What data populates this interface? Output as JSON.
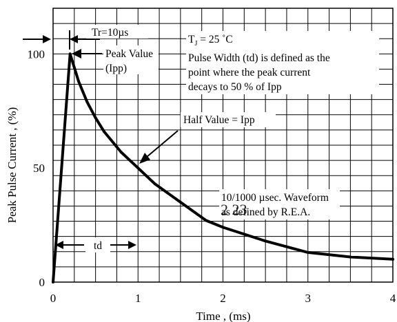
{
  "chart_data": {
    "type": "line",
    "title": "",
    "xlabel": "Time , (ms)",
    "ylabel": "Peak Pulse Current , (%)",
    "xlim": [
      0,
      4
    ],
    "ylim": [
      0,
      120
    ],
    "grid": true,
    "x_ticks": [
      0,
      1,
      2,
      3,
      4
    ],
    "y_ticks": [
      0,
      50,
      100
    ],
    "x_tick_labels": [
      "0",
      "1",
      "2",
      "3",
      "4"
    ],
    "y_tick_labels": [
      "0",
      "50",
      "100"
    ],
    "series": [
      {
        "x": [
          0,
          0.2,
          0.3,
          0.4,
          0.5,
          0.6,
          0.8,
          1.0,
          1.2,
          1.5,
          1.8,
          2.0,
          2.5,
          3.0,
          3.5,
          4.0
        ],
        "y": [
          0,
          100,
          88,
          79,
          72,
          66,
          57,
          50,
          43,
          35,
          27,
          24,
          18,
          13,
          11,
          10
        ]
      }
    ],
    "annotations": {
      "tr_label": "Tr=10µs",
      "peak_label_1": "Peak Value",
      "peak_label_2": "(Ipp)",
      "tj_main": "T",
      "tj_sub": "J",
      "tj_rest": " = 25 ˚C",
      "pulse_line_1": "Pulse Width (td) is defined as the",
      "pulse_line_2": "point where the peak current",
      "pulse_line_3": "decays to 50 % of Ipp",
      "half_value": "Half Value = Ipp",
      "waveform_line_1": "10/1000 µsec. Waveform",
      "waveform_line_2": "as defined by R.E.A.",
      "td_label": "td",
      "stamp": "2 23"
    }
  }
}
